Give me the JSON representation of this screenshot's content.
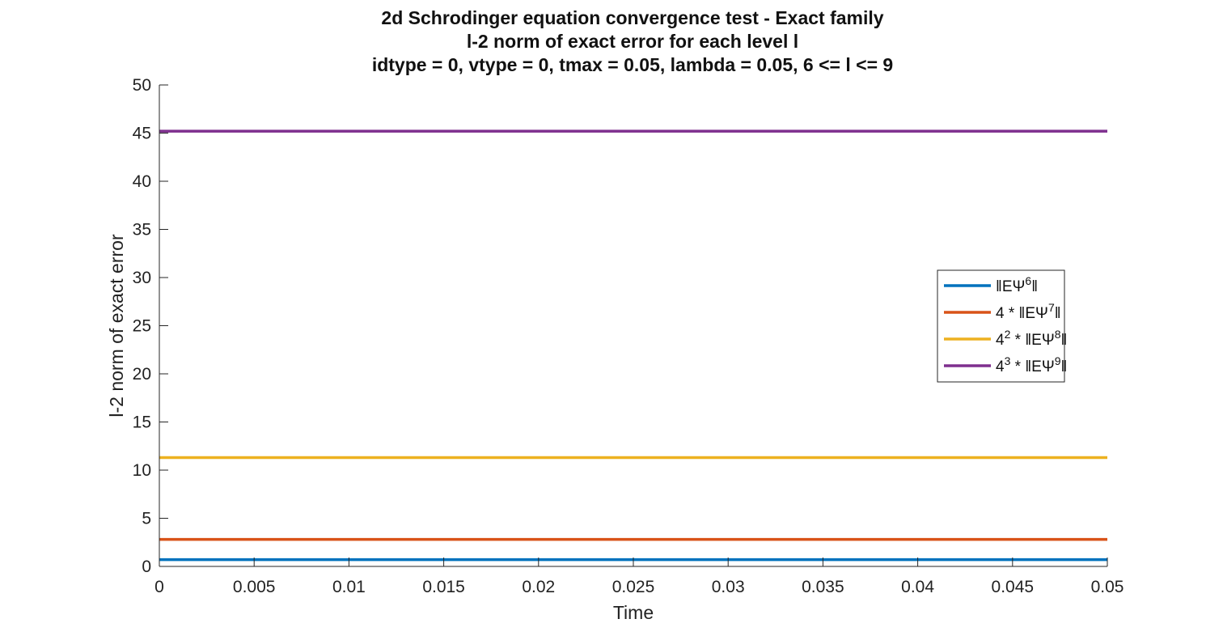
{
  "chart_data": {
    "type": "line",
    "title": [
      "2d Schrodinger equation convergence test - Exact family",
      "l-2 norm of exact error for each level l",
      "idtype = 0, vtype = 0, tmax = 0.05, lambda = 0.05, 6 <= l <= 9"
    ],
    "xlabel": "Time",
    "ylabel": "l-2 norm of exact error",
    "xlim": [
      0,
      0.05
    ],
    "ylim": [
      0,
      50
    ],
    "xticks": [
      0,
      0.005,
      0.01,
      0.015,
      0.02,
      0.025,
      0.03,
      0.035,
      0.04,
      0.045,
      0.05
    ],
    "xtick_labels": [
      "0",
      "0.005",
      "0.01",
      "0.015",
      "0.02",
      "0.025",
      "0.03",
      "0.035",
      "0.04",
      "0.045",
      "0.05"
    ],
    "yticks": [
      0,
      5,
      10,
      15,
      20,
      25,
      30,
      35,
      40,
      45,
      50
    ],
    "ytick_labels": [
      "0",
      "5",
      "10",
      "15",
      "20",
      "25",
      "30",
      "35",
      "40",
      "45",
      "50"
    ],
    "grid": false,
    "legend_position": "right",
    "series": [
      {
        "name": {
          "prefix": "",
          "base": "",
          "exp": "",
          "mid": " ",
          "level": "6"
        },
        "color": "#0072BD",
        "x": [
          0,
          0.05
        ],
        "y": [
          0.7,
          0.7
        ]
      },
      {
        "name": {
          "prefix": "4",
          "base": "",
          "exp": "",
          "mid": " * ",
          "level": "7"
        },
        "color": "#D95319",
        "x": [
          0,
          0.05
        ],
        "y": [
          2.8,
          2.8
        ]
      },
      {
        "name": {
          "prefix": "4",
          "base": "",
          "exp": "2",
          "mid": " * ",
          "level": "8"
        },
        "color": "#EDB120",
        "x": [
          0,
          0.05
        ],
        "y": [
          11.3,
          11.3
        ]
      },
      {
        "name": {
          "prefix": "4",
          "base": "",
          "exp": "3",
          "mid": " * ",
          "level": "9"
        },
        "color": "#7E2F8E",
        "x": [
          0,
          0.05
        ],
        "y": [
          45.2,
          45.2
        ]
      }
    ]
  }
}
